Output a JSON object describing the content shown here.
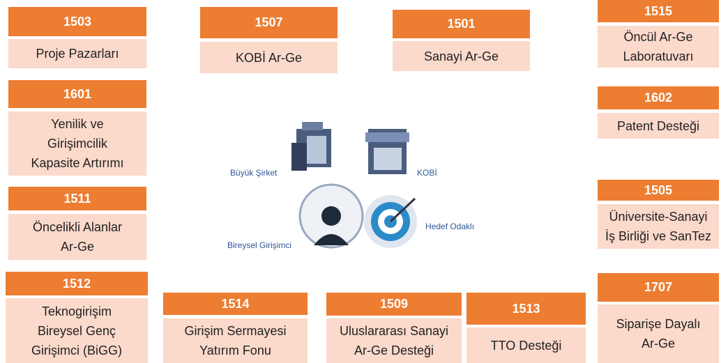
{
  "cards": [
    {
      "code": "1503",
      "lines": [
        "Proje Pazarları"
      ]
    },
    {
      "code": "1507",
      "lines": [
        "KOBİ Ar-Ge"
      ]
    },
    {
      "code": "1501",
      "lines": [
        "Sanayi Ar-Ge"
      ]
    },
    {
      "code": "1515",
      "lines": [
        "Öncül Ar-Ge",
        "Laboratuvarı"
      ]
    },
    {
      "code": "1601",
      "lines": [
        "Yenilik ve",
        "Girişimcilik",
        "Kapasite Artırımı"
      ]
    },
    {
      "code": "1602",
      "lines": [
        "Patent Desteği"
      ]
    },
    {
      "code": "1511",
      "lines": [
        "Öncelikli Alanlar",
        "Ar-Ge"
      ]
    },
    {
      "code": "1505",
      "lines": [
        "Üniversite-Sanayi",
        "İş Birliği ve SanTez"
      ]
    },
    {
      "code": "1512",
      "lines": [
        "Teknogirişim",
        "Bireysel Genç",
        "Girişimci (BiGG)"
      ]
    },
    {
      "code": "1514",
      "lines": [
        "Girişim Sermayesi",
        "Yatırım Fonu"
      ]
    },
    {
      "code": "1509",
      "lines": [
        "Uluslararası Sanayi",
        "Ar-Ge Desteği"
      ]
    },
    {
      "code": "1513",
      "lines": [
        "TTO Desteği"
      ]
    },
    {
      "code": "1707",
      "lines": [
        "Siparişe Dayalı",
        "Ar-Ge"
      ]
    }
  ],
  "center": {
    "labels": [
      "Büyük Şirket",
      "KOBİ",
      "Bireysel Girişimci",
      "Hedef Odaklı"
    ]
  }
}
